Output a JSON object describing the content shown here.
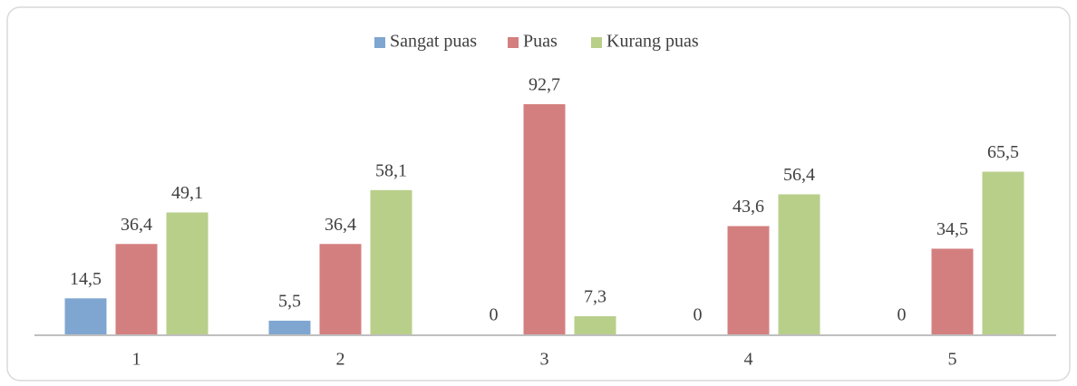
{
  "chart_data": {
    "type": "bar",
    "categories": [
      "1",
      "2",
      "3",
      "4",
      "5"
    ],
    "series": [
      {
        "name": "Sangat puas",
        "color": "#7fa6d0",
        "values": [
          14.5,
          5.5,
          0,
          0,
          0
        ],
        "value_labels": [
          "14,5",
          "5,5",
          "0",
          "0",
          "0"
        ]
      },
      {
        "name": "Puas",
        "color": "#d47f7f",
        "values": [
          36.4,
          36.4,
          92.7,
          43.6,
          34.5
        ],
        "value_labels": [
          "36,4",
          "36,4",
          "92,7",
          "43,6",
          "34,5"
        ]
      },
      {
        "name": "Kurang puas",
        "color": "#b8cf8a",
        "values": [
          49.1,
          58.1,
          7.3,
          56.4,
          65.5
        ],
        "value_labels": [
          "49,1",
          "58,1",
          "7,3",
          "56,4",
          "65,5"
        ]
      }
    ],
    "ylim": [
      0,
      100
    ],
    "legend": "top"
  }
}
